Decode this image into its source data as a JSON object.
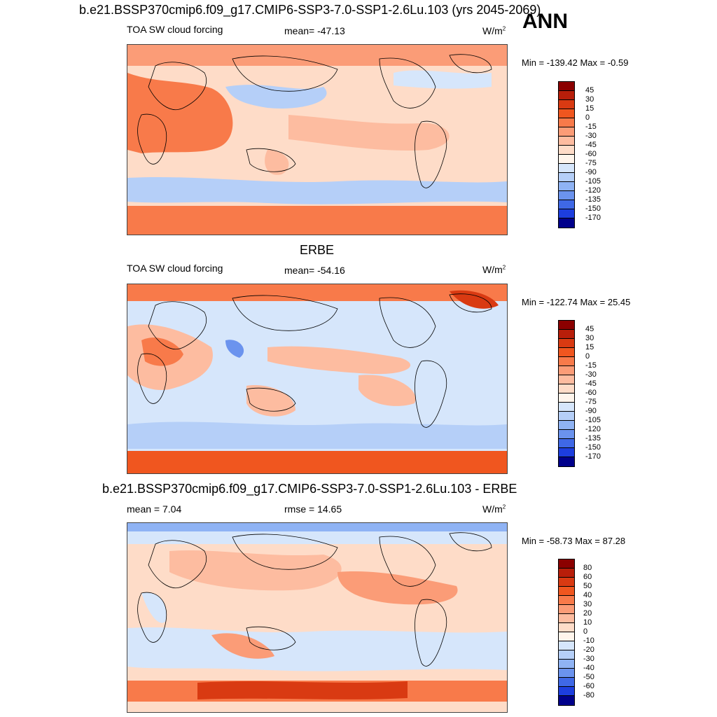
{
  "header": {
    "title": "b.e21.BSSP370cmip6.f09_g17.CMIP6-SSP3-7.0-SSP1-2.6Lu.103 (yrs 2045-2069)",
    "season": "ANN"
  },
  "panel1": {
    "field": "TOA SW cloud forcing",
    "mean": "mean= -47.13",
    "units": "W/m",
    "units_sup": "2",
    "minmax": "Min = -139.42 Max =  -0.59"
  },
  "panel2": {
    "heading": "ERBE",
    "field": "TOA SW cloud forcing",
    "mean": "mean= -54.16",
    "units": "W/m",
    "units_sup": "2",
    "minmax": "Min = -122.74 Max =  25.45"
  },
  "panel3": {
    "heading": "b.e21.BSSP370cmip6.f09_g17.CMIP6-SSP3-7.0-SSP1-2.6Lu.103 - ERBE",
    "mean": "mean =   7.04",
    "rmse": "rmse =  14.65",
    "units": "W/m",
    "units_sup": "2",
    "minmax": "Min = -58.73 Max =  87.28"
  },
  "colorbars": {
    "abs": {
      "labels": [
        "45",
        "30",
        "15",
        "0",
        "-15",
        "-30",
        "-45",
        "-60",
        "-75",
        "-90",
        "-105",
        "-120",
        "-135",
        "-150",
        "-170"
      ],
      "colors": [
        "#8b0000",
        "#b81e0a",
        "#d93a12",
        "#f0561f",
        "#f87a4a",
        "#fb9c77",
        "#fdbca0",
        "#fedcc8",
        "#fff5ec",
        "#d6e6fb",
        "#b5cff8",
        "#8fb3f4",
        "#6b93ee",
        "#3f68e6",
        "#1d3ede",
        "#00008b"
      ]
    },
    "diff": {
      "labels": [
        "80",
        "60",
        "50",
        "40",
        "30",
        "20",
        "10",
        "0",
        "-10",
        "-20",
        "-30",
        "-40",
        "-50",
        "-60",
        "-80"
      ],
      "colors": [
        "#8b0000",
        "#b81e0a",
        "#d93a12",
        "#f0561f",
        "#f87a4a",
        "#fb9c77",
        "#fdbca0",
        "#fedcc8",
        "#fff5ec",
        "#d6e6fb",
        "#b5cff8",
        "#8fb3f4",
        "#6b93ee",
        "#3f68e6",
        "#1d3ede",
        "#00008b"
      ]
    }
  }
}
